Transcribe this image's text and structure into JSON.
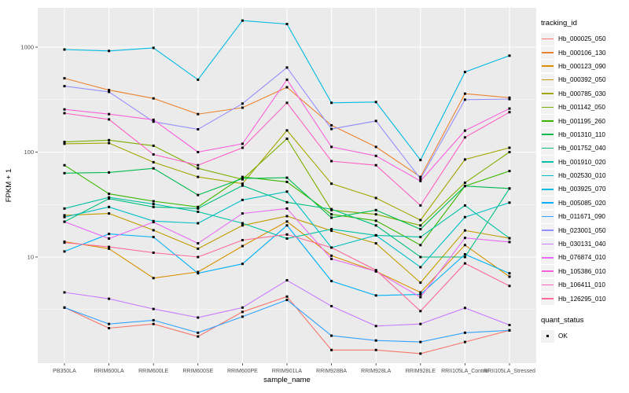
{
  "chart_data": {
    "type": "line",
    "title": "",
    "xlabel": "sample_name",
    "ylabel": "FPKM + 1",
    "y_scale": "log10",
    "y_ticks": [
      1000,
      100,
      10
    ],
    "y_minor_ticks": [
      316.2,
      31.62,
      3.162
    ],
    "ylim": [
      0.97,
      2300
    ],
    "grid": "on",
    "panel_bg": "#EBEBEB",
    "grid_color": "#FFFFFF",
    "point_color": "#000000",
    "tick_text_color": "#4D4D4D",
    "legend": {
      "title": "tracking_id",
      "position": "right"
    },
    "quant_legend": {
      "title": "quant_status",
      "items": [
        "OK"
      ]
    },
    "categories": [
      "PB350LA",
      "RRIM600LA",
      "RRIM600LE",
      "RRIM600SE",
      "RRIM600PE",
      "RRIM901LA",
      "RRIM928BA",
      "RRIM928LA",
      "RRIM928LE",
      "RRII105LA_Control",
      "RRII105LA_Stressed"
    ],
    "series": [
      {
        "name": "Hb_000025_050",
        "color": "#F8766D",
        "values": [
          3.3,
          2.1,
          2.3,
          1.75,
          3.0,
          4.2,
          1.3,
          1.3,
          1.2,
          1.55,
          2.0
        ]
      },
      {
        "name": "Hb_000106_130",
        "color": "#EA8331",
        "values": [
          505,
          390,
          325,
          230,
          265,
          415,
          180,
          112,
          58,
          360,
          330
        ]
      },
      {
        "name": "Hb_000123_090",
        "color": "#D89000",
        "values": [
          14,
          12,
          6.3,
          7.2,
          12.7,
          21.8,
          10.3,
          7.3,
          4.6,
          13,
          6.5
        ]
      },
      {
        "name": "Hb_000392_050",
        "color": "#C09B00",
        "values": [
          25,
          26,
          18,
          12,
          20,
          24.5,
          17.8,
          13.5,
          5.7,
          17.9,
          15.1
        ]
      },
      {
        "name": "Hb_000785_030",
        "color": "#A3A500",
        "values": [
          120,
          122,
          80,
          58,
          50,
          161,
          50,
          36.5,
          22.5,
          85,
          110
        ]
      },
      {
        "name": "Hb_001142_050",
        "color": "#7CAE00",
        "values": [
          125,
          130,
          115,
          70,
          55,
          134,
          28,
          25.5,
          20,
          51,
          100
        ]
      },
      {
        "name": "Hb_001195_260",
        "color": "#39B600",
        "values": [
          75,
          40,
          34,
          30,
          58,
          52,
          25.5,
          22.2,
          13,
          47.5,
          66
        ]
      },
      {
        "name": "Hb_001310_110",
        "color": "#00BB4E",
        "values": [
          63,
          64,
          70,
          39,
          56,
          57,
          23.7,
          28,
          18.4,
          47.5,
          45
        ]
      },
      {
        "name": "Hb_001752_040",
        "color": "#00BF7D",
        "values": [
          21.7,
          36,
          30,
          29,
          48,
          33.3,
          28.6,
          20,
          10,
          10,
          45
        ]
      },
      {
        "name": "Hb_001910_020",
        "color": "#00C1A3",
        "values": [
          29,
          37,
          32,
          27,
          21,
          15,
          18.4,
          16.1,
          15.5,
          31,
          15.1
        ]
      },
      {
        "name": "Hb_002530_010",
        "color": "#00BFC4",
        "values": [
          24,
          30,
          22,
          21,
          35,
          42,
          12.3,
          16.1,
          8,
          24,
          33
        ]
      },
      {
        "name": "Hb_003925_070",
        "color": "#00BAE0",
        "values": [
          950,
          920,
          985,
          490,
          1790,
          1660,
          295,
          300,
          84,
          580,
          830
        ]
      },
      {
        "name": "Hb_005085_020",
        "color": "#00B0F6",
        "values": [
          11.3,
          16.6,
          15.5,
          7.0,
          8.6,
          20,
          5.9,
          4.3,
          4.4,
          10.6,
          7.0
        ]
      },
      {
        "name": "Hb_011671_090",
        "color": "#35A2FF",
        "values": [
          3.3,
          2.3,
          2.5,
          1.9,
          2.7,
          3.9,
          1.78,
          1.6,
          1.55,
          1.9,
          2.0
        ]
      },
      {
        "name": "Hb_023001_050",
        "color": "#9590FF",
        "values": [
          425,
          375,
          195,
          165,
          290,
          640,
          166,
          198,
          55.6,
          316,
          320
        ]
      },
      {
        "name": "Hb_030131_040",
        "color": "#C77CFF",
        "values": [
          4.6,
          4.0,
          3.2,
          2.65,
          3.3,
          6.0,
          3.4,
          2.2,
          2.3,
          3.27,
          2.25
        ]
      },
      {
        "name": "Hb_076874_010",
        "color": "#E76BF3",
        "values": [
          21.7,
          15,
          21.5,
          13.5,
          26,
          29,
          9.6,
          7.3,
          4.15,
          15.2,
          13.9
        ]
      },
      {
        "name": "Hb_105386_010",
        "color": "#FA62DB",
        "values": [
          255,
          230,
          203,
          100,
          120,
          490,
          112,
          92,
          53,
          160,
          260
        ]
      },
      {
        "name": "Hb_106411_010",
        "color": "#FF61C3",
        "values": [
          235,
          205,
          95,
          75,
          110,
          295,
          82,
          75,
          31,
          138,
          240
        ]
      },
      {
        "name": "Hb_126295_010",
        "color": "#FF6A98",
        "values": [
          13.7,
          12.5,
          11,
          10,
          14.5,
          16.4,
          12.3,
          7.5,
          3.05,
          8.7,
          5.3
        ]
      }
    ]
  }
}
